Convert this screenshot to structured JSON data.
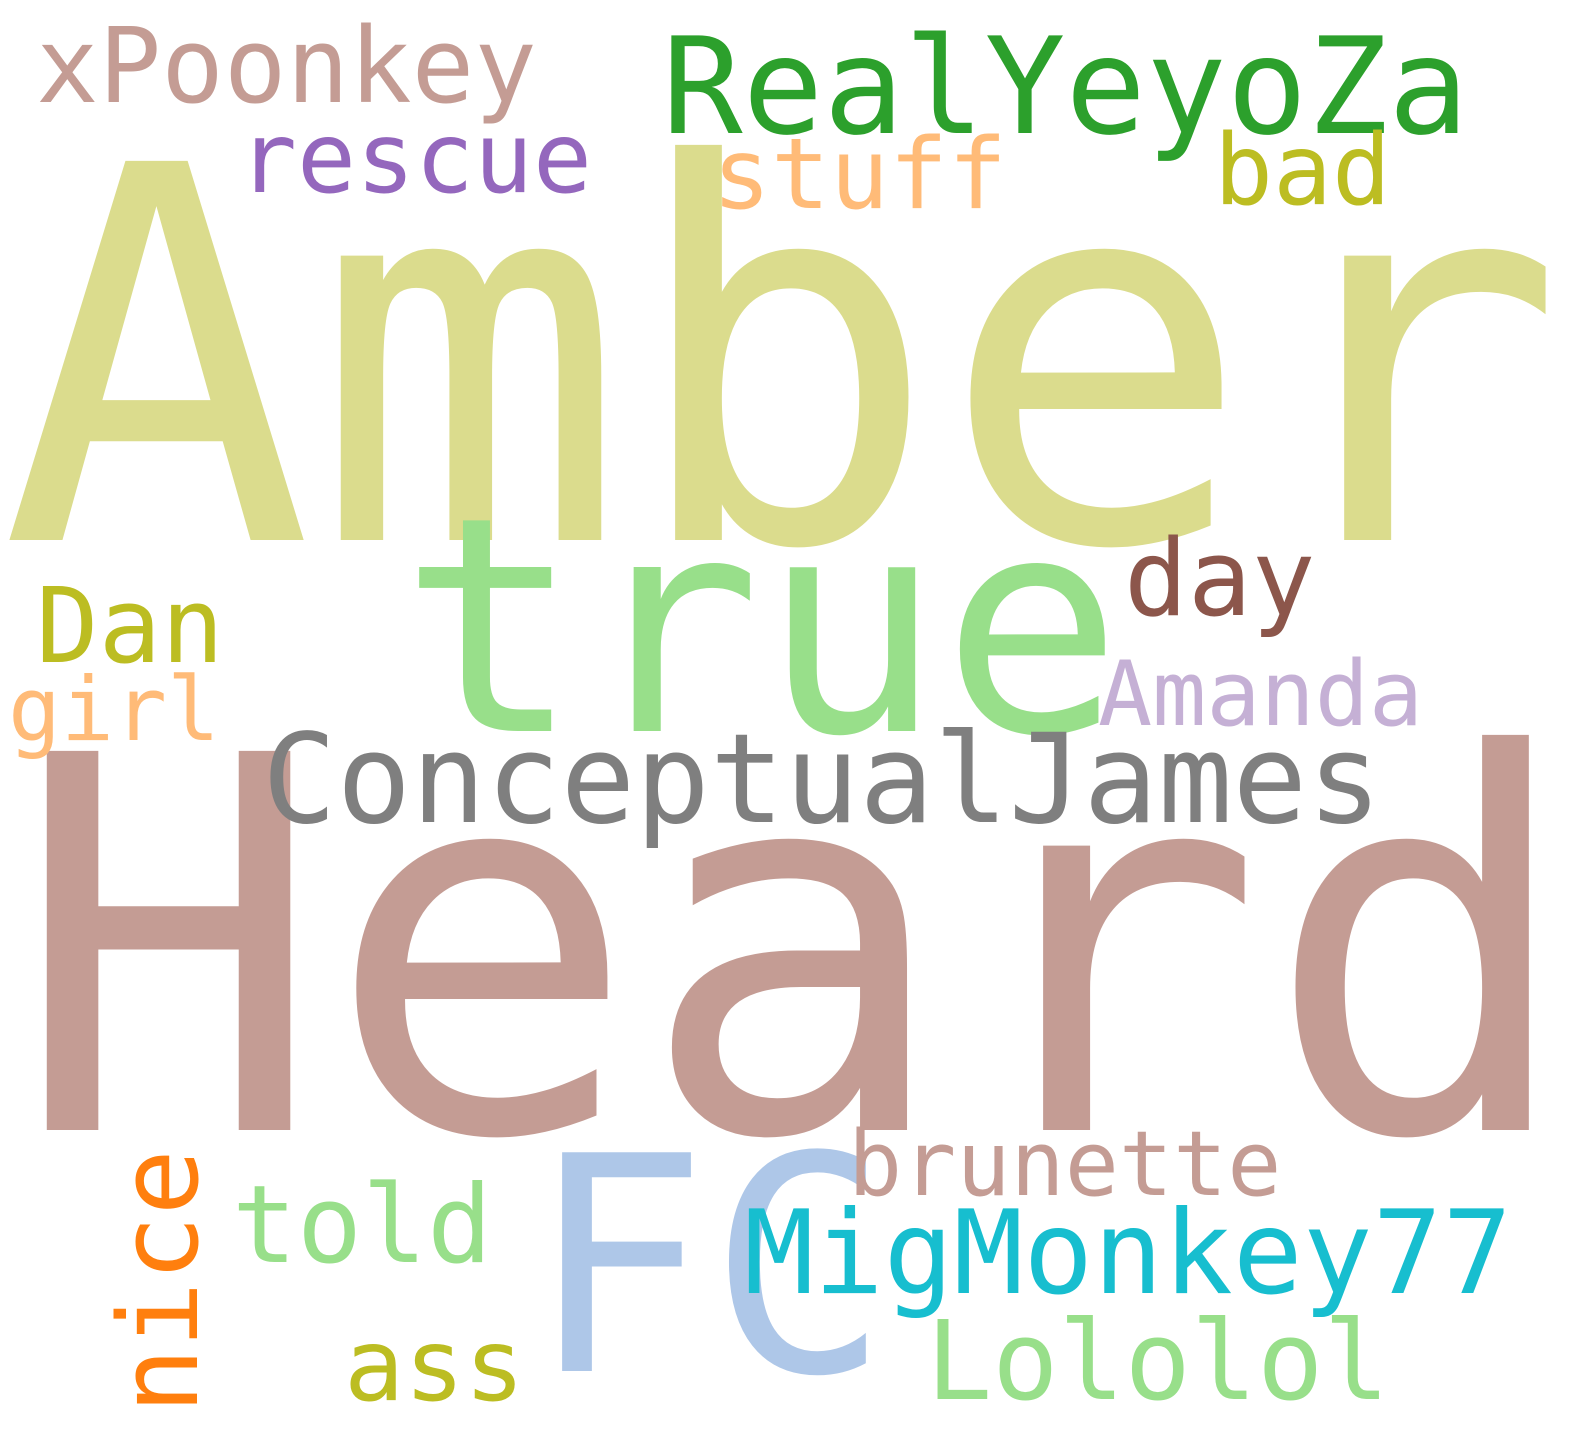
{
  "words": [
    {
      "key": "amber",
      "text": "Amber",
      "color": "#dbdc8d"
    },
    {
      "key": "heard",
      "text": "Heard",
      "color": "#c49c94"
    },
    {
      "key": "true",
      "text": "true",
      "color": "#98df8a"
    },
    {
      "key": "real",
      "text": "RealYeyoZa",
      "color": "#2ca02c"
    },
    {
      "key": "xpoon",
      "text": "xPoonkey",
      "color": "#c49c94"
    },
    {
      "key": "rescue",
      "text": "rescue",
      "color": "#9467bd"
    },
    {
      "key": "stuff",
      "text": "stuff",
      "color": "#ffbb78"
    },
    {
      "key": "bad",
      "text": "bad",
      "color": "#bcbd22"
    },
    {
      "key": "day",
      "text": "day",
      "color": "#8c564b"
    },
    {
      "key": "dan",
      "text": "Dan",
      "color": "#bcbd22"
    },
    {
      "key": "amanda",
      "text": "Amanda",
      "color": "#c5b0d5"
    },
    {
      "key": "girl",
      "text": "girl",
      "color": "#ffbb78"
    },
    {
      "key": "concept",
      "text": "ConceptualJames",
      "color": "#7f7f7f"
    },
    {
      "key": "fc",
      "text": "FC",
      "color": "#aec7e8"
    },
    {
      "key": "mig",
      "text": "MigMonkey77",
      "color": "#17becf"
    },
    {
      "key": "brun",
      "text": "brunette",
      "color": "#c49c94"
    },
    {
      "key": "told",
      "text": "told",
      "color": "#98df8a"
    },
    {
      "key": "ass",
      "text": "ass",
      "color": "#bcbd22"
    },
    {
      "key": "lolo",
      "text": "Lololol",
      "color": "#98df8a"
    },
    {
      "key": "nice",
      "text": "nice",
      "color": "#ff7f0e"
    }
  ]
}
